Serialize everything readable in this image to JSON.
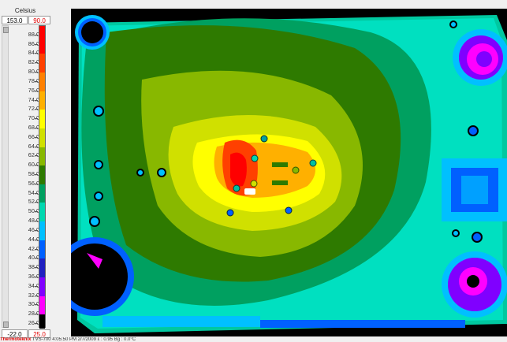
{
  "scale": {
    "unit_label": "Celsius",
    "top_left": "153.0",
    "top_right": "90.0",
    "bottom_left": "-22.0",
    "bottom_right": "25.0",
    "labels": [
      "88.0",
      "86.0",
      "84.0",
      "82.0",
      "80.0",
      "78.0",
      "76.0",
      "74.0",
      "72.0",
      "70.0",
      "68.0",
      "66.0",
      "64.0",
      "62.0",
      "60.0",
      "58.0",
      "56.0",
      "54.0",
      "52.0",
      "50.0",
      "48.0",
      "46.0",
      "44.0",
      "42.0",
      "40.0",
      "38.0",
      "36.0",
      "34.0",
      "32.0",
      "30.0",
      "28.0",
      "26.0"
    ],
    "colors": [
      {
        "from": 90,
        "to": 84,
        "hex": "#ff0000"
      },
      {
        "from": 84,
        "to": 80,
        "hex": "#ff4000"
      },
      {
        "from": 80,
        "to": 76,
        "hex": "#ff8000"
      },
      {
        "from": 76,
        "to": 72,
        "hex": "#ffb000"
      },
      {
        "from": 72,
        "to": 68,
        "hex": "#ffff00"
      },
      {
        "from": 68,
        "to": 64,
        "hex": "#d0e000"
      },
      {
        "from": 64,
        "to": 60,
        "hex": "#88b800"
      },
      {
        "from": 60,
        "to": 56,
        "hex": "#2e7a00"
      },
      {
        "from": 56,
        "to": 52,
        "hex": "#00a060"
      },
      {
        "from": 52,
        "to": 48,
        "hex": "#00d8b0"
      },
      {
        "from": 48,
        "to": 44,
        "hex": "#00c0ff"
      },
      {
        "from": 44,
        "to": 40,
        "hex": "#0060ff"
      },
      {
        "from": 40,
        "to": 36,
        "hex": "#2020c0"
      },
      {
        "from": 36,
        "to": 32,
        "hex": "#8000ff"
      },
      {
        "from": 32,
        "to": 28,
        "hex": "#ff00ff"
      },
      {
        "from": 28,
        "to": 25,
        "hex": "#000000"
      }
    ]
  },
  "status": {
    "brand": "Thermoteknix",
    "model": "TVS-700",
    "time": "4:05:50 PM",
    "date": "2/7/2009",
    "emissivity": "ε : 0.95",
    "bg": "Bg : 0.0°C"
  }
}
